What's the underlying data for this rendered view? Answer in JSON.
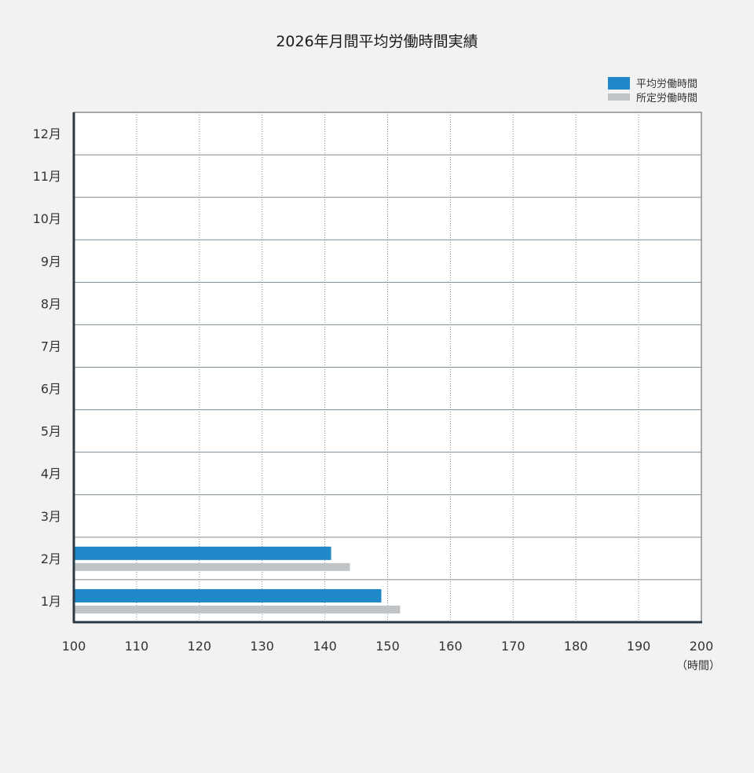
{
  "chart_data": {
    "type": "bar",
    "orientation": "horizontal",
    "title": "2026年月間平均労働時間実績",
    "categories": [
      "1月",
      "2月",
      "3月",
      "4月",
      "5月",
      "6月",
      "7月",
      "8月",
      "9月",
      "10月",
      "11月",
      "12月"
    ],
    "series": [
      {
        "name": "平均労働時間",
        "color": "#1e88c8",
        "values": [
          149,
          141,
          null,
          null,
          null,
          null,
          null,
          null,
          null,
          null,
          null,
          null
        ]
      },
      {
        "name": "所定労働時間",
        "color": "#c0c4c7",
        "values": [
          152,
          144,
          null,
          null,
          null,
          null,
          null,
          null,
          null,
          null,
          null,
          null
        ]
      }
    ],
    "xlim": [
      100,
      200
    ],
    "xticks": [
      100,
      110,
      120,
      130,
      140,
      150,
      160,
      170,
      180,
      190,
      200
    ],
    "xlabel": "（時間）",
    "ylabel": "",
    "grid": true,
    "legend_position": "top-right"
  }
}
